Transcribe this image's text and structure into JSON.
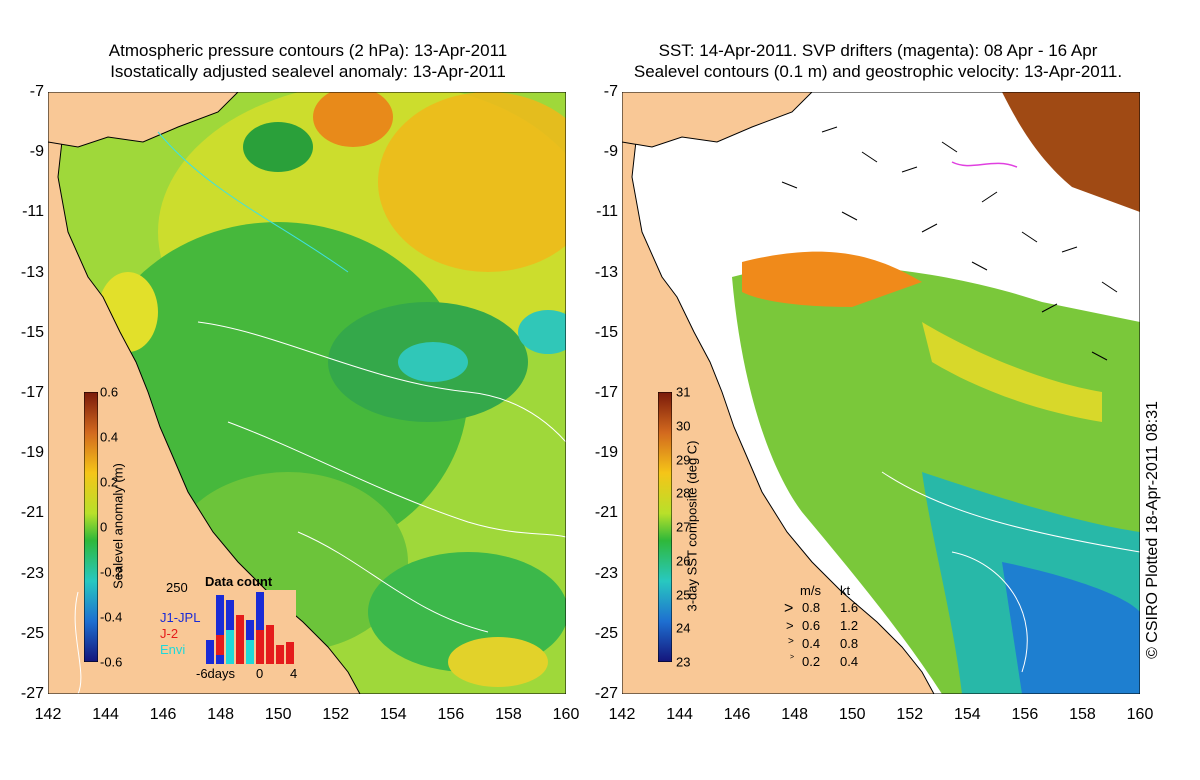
{
  "left_panel": {
    "title_line1": "Atmospheric pressure contours (2 hPa): 13-Apr-2011",
    "title_line2": "Isostatically adjusted sealevel anomaly: 13-Apr-2011",
    "colorbar_label": "Sealevel anomaly (m)",
    "colorbar_ticks": [
      "0.6",
      "0.4",
      "0.2",
      "0",
      "-0.2",
      "-0.4",
      "-0.6"
    ],
    "colorbar_range": [
      -0.6,
      0.6
    ],
    "data_count": {
      "title": "Data count",
      "ymax_label": "250",
      "xticks": [
        "-6days",
        "0",
        "4"
      ],
      "legend": [
        {
          "label": "J1-JPL",
          "color": "#1a2bd6"
        },
        {
          "label": "J-2",
          "color": "#e51b1b"
        },
        {
          "label": "Envi",
          "color": "#20d8d8"
        }
      ]
    }
  },
  "right_panel": {
    "title_line1": "SST: 14-Apr-2011. SVP drifters (magenta): 08 Apr - 16 Apr",
    "title_line2": "Sealevel contours (0.1 m) and geostrophic velocity: 13-Apr-2011.",
    "colorbar_label": "3-day SST composite (deg C)",
    "colorbar_ticks": [
      "31",
      "30",
      "29",
      "28",
      "27",
      "26",
      "25",
      "24",
      "23"
    ],
    "colorbar_range": [
      23,
      31
    ],
    "velocity_legend": {
      "header_ms": "m/s",
      "header_kt": "kt",
      "rows": [
        {
          "ms": "0.8",
          "kt": "1.6"
        },
        {
          "ms": "0.6",
          "kt": "1.2"
        },
        {
          "ms": "0.4",
          "kt": "0.8"
        },
        {
          "ms": "0.2",
          "kt": "0.4"
        }
      ]
    }
  },
  "axes": {
    "lat_ticks": [
      "-7",
      "-9",
      "-11",
      "-13",
      "-15",
      "-17",
      "-19",
      "-21",
      "-23",
      "-25",
      "-27"
    ],
    "lon_ticks": [
      "142",
      "144",
      "146",
      "148",
      "150",
      "152",
      "154",
      "156",
      "158",
      "160"
    ],
    "lon_range": [
      142,
      160
    ],
    "lat_range": [
      -27,
      -7
    ]
  },
  "credit": "© CSIRO Plotted 18-Apr-2011 08:31",
  "colors": {
    "land": "#f9c896",
    "ocean_green": "#3cbf3c",
    "coast": "#000000",
    "contour": "#ffffff"
  }
}
